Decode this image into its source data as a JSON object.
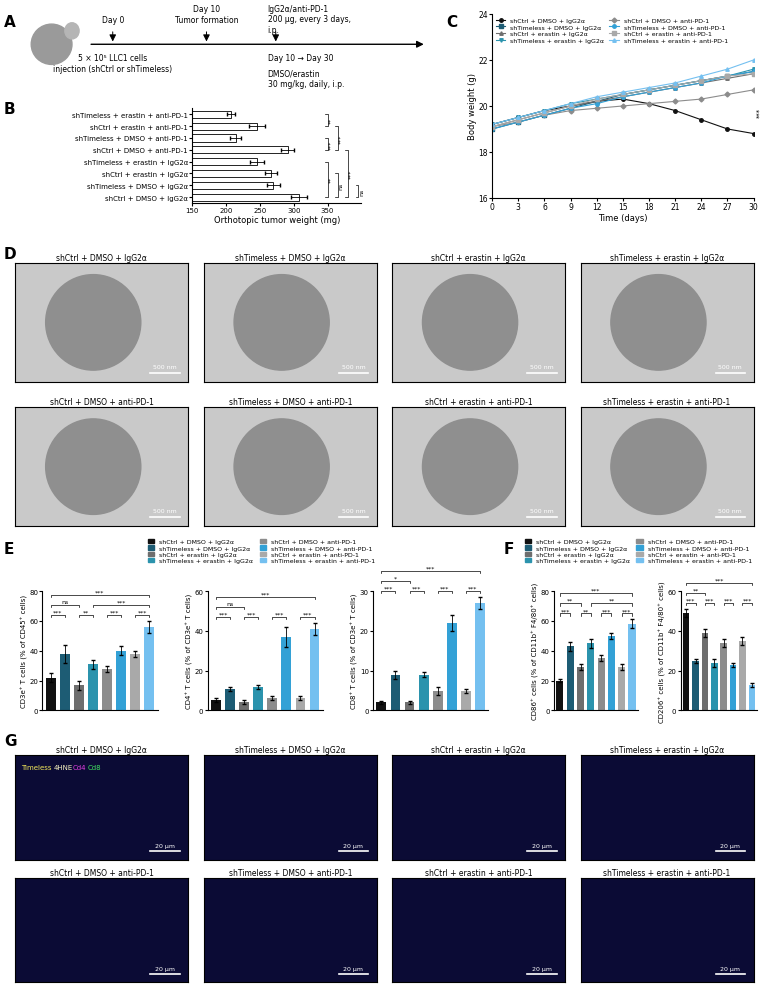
{
  "panel_labels": [
    "A",
    "B",
    "C",
    "D",
    "E",
    "F",
    "G"
  ],
  "groups": [
    {
      "name": "shCtrl + DMSO + IgG2α",
      "color": "#111111"
    },
    {
      "name": "shTimeless + DMSO + IgG2α",
      "color": "#1d5c74"
    },
    {
      "name": "shCtrl + erastin + IgG2α",
      "color": "#6e6e6e"
    },
    {
      "name": "shTimeless + erastin + IgG2α",
      "color": "#2b93ad"
    },
    {
      "name": "shCtrl + DMSO + anti-PD-1",
      "color": "#8c8c8c"
    },
    {
      "name": "shTimeless + DMSO + anti-PD-1",
      "color": "#33a1d6"
    },
    {
      "name": "shCtrl + erastin + anti-PD-1",
      "color": "#a9a9a9"
    },
    {
      "name": "shTimeless + erastin + anti-PD-1",
      "color": "#74c0f0"
    }
  ],
  "schematic": {
    "day0": "Day 0",
    "injection": "5 × 10⁵ LLC1 cells\ninjection (shCtrl or shTimeless)",
    "day10": "Day 10",
    "tumor": "Tumor formation",
    "antibody": "IgG2α/anti-PD-1\n200 μg, every 3 days,\ni.p.",
    "period": "Day 10 → Day 30",
    "drug": "DMSO/erastin\n30 mg/kg, daily, i.p."
  },
  "chart_data": [
    {
      "type": "bar",
      "orientation": "horizontal",
      "categories": [
        "shTimeless + erastin + anti-PD-1",
        "shCtrl + erastin + anti-PD-1",
        "shTimeless + DMSO + anti-PD-1",
        "shCtrl + DMSO + anti-PD-1",
        "shTimeless + erastin + IgG2α",
        "shCtrl + erastin + IgG2α",
        "shTimeless + DMSO + IgG2α",
        "shCtrl + DMSO + IgG2α"
      ],
      "values": [
        207,
        246,
        214,
        291,
        246,
        266,
        270,
        308
      ],
      "errors": [
        6,
        12,
        8,
        10,
        10,
        9,
        10,
        12
      ],
      "xlabel": "Orthotopic tumor weight (mg)",
      "xlim": [
        150,
        400
      ],
      "xticks": [
        150,
        200,
        250,
        300,
        350
      ],
      "brackets": [
        {
          "from": 0,
          "to": 1,
          "label": "**"
        },
        {
          "from": 2,
          "to": 3,
          "label": "***"
        },
        {
          "from": 1,
          "to": 3,
          "label": "***"
        },
        {
          "from": 3,
          "to": 7,
          "label": "***"
        },
        {
          "from": 4,
          "to": 7,
          "label": "**"
        },
        {
          "from": 5,
          "to": 7,
          "label": "ns"
        },
        {
          "from": 6,
          "to": 7,
          "label": "ns"
        }
      ]
    },
    {
      "type": "line",
      "x": [
        0,
        3,
        6,
        9,
        12,
        15,
        18,
        21,
        24,
        27,
        30
      ],
      "xlabel": "Time (days)",
      "ylabel": "Body weight (g)",
      "xlim": [
        0,
        30
      ],
      "xticks": [
        0,
        3,
        6,
        9,
        12,
        15,
        18,
        21,
        24,
        27,
        30
      ],
      "ylim": [
        16,
        24
      ],
      "yticks": [
        16,
        18,
        20,
        22,
        24
      ],
      "legend": "upper left",
      "annotations": [
        "***"
      ],
      "series": [
        {
          "name": "shCtrl + DMSO + IgG2α",
          "color": "#111111",
          "marker": "circle",
          "values": [
            19.2,
            19.5,
            19.8,
            20.0,
            20.2,
            20.3,
            20.1,
            19.8,
            19.4,
            19.0,
            18.8
          ]
        },
        {
          "name": "shTimeless + DMSO + IgG2α",
          "color": "#1d5c74",
          "marker": "square",
          "values": [
            19.0,
            19.3,
            19.6,
            19.9,
            20.2,
            20.5,
            20.7,
            20.9,
            21.1,
            21.3,
            21.5
          ]
        },
        {
          "name": "shCtrl + erastin + IgG2α",
          "color": "#6e6e6e",
          "marker": "triangle_up",
          "values": [
            19.1,
            19.4,
            19.7,
            20.0,
            20.2,
            20.4,
            20.6,
            20.8,
            21.0,
            21.2,
            21.4
          ]
        },
        {
          "name": "shTimeless + erastin + IgG2α",
          "color": "#2b93ad",
          "marker": "triangle_down",
          "values": [
            19.2,
            19.5,
            19.8,
            20.1,
            20.3,
            20.5,
            20.7,
            20.9,
            21.1,
            21.3,
            21.6
          ]
        },
        {
          "name": "shCtrl + DMSO + anti-PD-1",
          "color": "#8c8c8c",
          "marker": "diamond",
          "values": [
            19.1,
            19.3,
            19.6,
            19.8,
            19.9,
            20.0,
            20.1,
            20.2,
            20.3,
            20.5,
            20.7
          ]
        },
        {
          "name": "shTimeless + DMSO + anti-PD-1",
          "color": "#33a1d6",
          "marker": "circle",
          "values": [
            19.0,
            19.3,
            19.6,
            19.9,
            20.1,
            20.4,
            20.6,
            20.8,
            21.0,
            21.3,
            21.5
          ]
        },
        {
          "name": "shCtrl + erastin + anti-PD-1",
          "color": "#a9a9a9",
          "marker": "square",
          "values": [
            19.1,
            19.4,
            19.7,
            20.0,
            20.3,
            20.5,
            20.7,
            20.9,
            21.1,
            21.3,
            21.4
          ]
        },
        {
          "name": "shTimeless + erastin + anti-PD-1",
          "color": "#74c0f0",
          "marker": "triangle_up",
          "values": [
            19.2,
            19.5,
            19.8,
            20.1,
            20.4,
            20.6,
            20.8,
            21.0,
            21.3,
            21.6,
            22.0
          ]
        }
      ]
    },
    {
      "type": "bar",
      "categories": [
        null,
        null,
        null,
        null,
        null,
        null,
        null,
        null
      ],
      "values": [
        22,
        38,
        17,
        31,
        28,
        40,
        38,
        56
      ],
      "errors": [
        3,
        6,
        3,
        3,
        2,
        3,
        2,
        4
      ],
      "ylabel": "CD3e⁺ T cells (% of CD45⁺ cells)",
      "ylim": [
        0,
        80
      ],
      "yticks": [
        0,
        20,
        40,
        60,
        80
      ],
      "brackets": [
        {
          "from": 0,
          "to": 1,
          "label": "***"
        },
        {
          "from": 2,
          "to": 3,
          "label": "**"
        },
        {
          "from": 4,
          "to": 5,
          "label": "***"
        },
        {
          "from": 6,
          "to": 7,
          "label": "***"
        },
        {
          "from": 0,
          "to": 2,
          "label": "ns"
        },
        {
          "from": 0,
          "to": 7,
          "label": "***"
        },
        {
          "from": 3,
          "to": 7,
          "label": "***"
        }
      ]
    },
    {
      "type": "bar",
      "categories": [
        null,
        null,
        null,
        null,
        null,
        null,
        null,
        null
      ],
      "values": [
        5,
        11,
        4,
        12,
        6,
        37,
        6,
        41
      ],
      "errors": [
        1,
        1,
        1,
        1,
        1,
        5,
        1,
        3
      ],
      "ylabel": "CD4⁺ T cells (% of CD3e⁺ T cells)",
      "ylim": [
        0,
        60
      ],
      "yticks": [
        0,
        20,
        40,
        60
      ],
      "brackets": [
        {
          "from": 0,
          "to": 1,
          "label": "***"
        },
        {
          "from": 2,
          "to": 3,
          "label": "***"
        },
        {
          "from": 4,
          "to": 5,
          "label": "***"
        },
        {
          "from": 6,
          "to": 7,
          "label": "***"
        },
        {
          "from": 0,
          "to": 2,
          "label": "ns"
        },
        {
          "from": 0,
          "to": 7,
          "label": "***"
        }
      ]
    },
    {
      "type": "bar",
      "categories": [
        null,
        null,
        null,
        null,
        null,
        null,
        null,
        null
      ],
      "values": [
        2,
        9,
        2,
        9,
        5,
        22,
        5,
        27
      ],
      "errors": [
        0.3,
        1,
        0.3,
        0.6,
        1,
        2,
        0.5,
        1.5
      ],
      "ylabel": "CD8⁺ T cells (% of CD3e⁺ T cells)",
      "ylim": [
        0,
        30
      ],
      "yticks": [
        0,
        10,
        20,
        30
      ],
      "brackets": [
        {
          "from": 0,
          "to": 1,
          "label": "***"
        },
        {
          "from": 2,
          "to": 3,
          "label": "***"
        },
        {
          "from": 4,
          "to": 5,
          "label": "***"
        },
        {
          "from": 6,
          "to": 7,
          "label": "***"
        },
        {
          "from": 0,
          "to": 2,
          "label": "*"
        },
        {
          "from": 0,
          "to": 7,
          "label": "***"
        }
      ]
    },
    {
      "type": "bar",
      "categories": [
        null,
        null,
        null,
        null,
        null,
        null,
        null,
        null
      ],
      "values": [
        20,
        43,
        29,
        45,
        35,
        50,
        29,
        58
      ],
      "errors": [
        1,
        3,
        2,
        3,
        2,
        2,
        2,
        3
      ],
      "ylabel": "CD86⁺ cells (% of CD11b⁺ F4/80⁺ cells)",
      "ylim": [
        0,
        80
      ],
      "yticks": [
        0,
        20,
        40,
        60,
        80
      ],
      "brackets": [
        {
          "from": 0,
          "to": 1,
          "label": "***"
        },
        {
          "from": 2,
          "to": 3,
          "label": "**"
        },
        {
          "from": 4,
          "to": 5,
          "label": "***"
        },
        {
          "from": 6,
          "to": 7,
          "label": "***"
        },
        {
          "from": 0,
          "to": 2,
          "label": "**"
        },
        {
          "from": 0,
          "to": 7,
          "label": "***"
        },
        {
          "from": 3,
          "to": 7,
          "label": "**"
        }
      ]
    },
    {
      "type": "bar",
      "categories": [
        null,
        null,
        null,
        null,
        null,
        null,
        null,
        null
      ],
      "values": [
        49,
        25,
        39,
        24,
        34,
        23,
        35,
        13
      ],
      "errors": [
        2,
        1,
        2,
        2,
        2,
        1,
        2,
        1
      ],
      "ylabel": "CD206⁺ cells (% of CD11b⁺ F4/80⁺ cells)",
      "ylim": [
        0,
        60
      ],
      "yticks": [
        0,
        20,
        40,
        60
      ],
      "brackets": [
        {
          "from": 0,
          "to": 1,
          "label": "***"
        },
        {
          "from": 2,
          "to": 3,
          "label": "***"
        },
        {
          "from": 4,
          "to": 5,
          "label": "***"
        },
        {
          "from": 6,
          "to": 7,
          "label": "***"
        },
        {
          "from": 0,
          "to": 2,
          "label": "**"
        },
        {
          "from": 0,
          "to": 7,
          "label": "***"
        }
      ]
    }
  ],
  "images": {
    "D": {
      "titles": [
        "shCtrl + DMSO + IgG2α",
        "shTimeless + DMSO + IgG2α",
        "shCtrl + erastin + IgG2α",
        "shTimeless + erastin + IgG2α",
        "shCtrl + DMSO + anti-PD-1",
        "shTimeless + DMSO + anti-PD-1",
        "shCtrl + erastin + anti-PD-1",
        "shTimeless + erastin + anti-PD-1"
      ],
      "scale_bar": "500 nm"
    },
    "G": {
      "titles": [
        "shCtrl + DMSO + IgG2α",
        "shTimeless + DMSO + IgG2α",
        "shCtrl + erastin + IgG2α",
        "shTimeless + erastin + IgG2α",
        "shCtrl + DMSO + anti-PD-1",
        "shTimeless + DMSO + anti-PD-1",
        "shCtrl + erastin + anti-PD-1",
        "shTimeless + erastin + anti-PD-1"
      ],
      "stain_labels": [
        {
          "text": "Timeless",
          "color": "#f2e85a"
        },
        {
          "text": "4HNE",
          "color": "#f4f0c0"
        },
        {
          "text": "Cd4",
          "color": "#e040e0"
        },
        {
          "text": "Cd8",
          "color": "#40e060"
        }
      ],
      "scale_bar": "20 μm"
    }
  }
}
